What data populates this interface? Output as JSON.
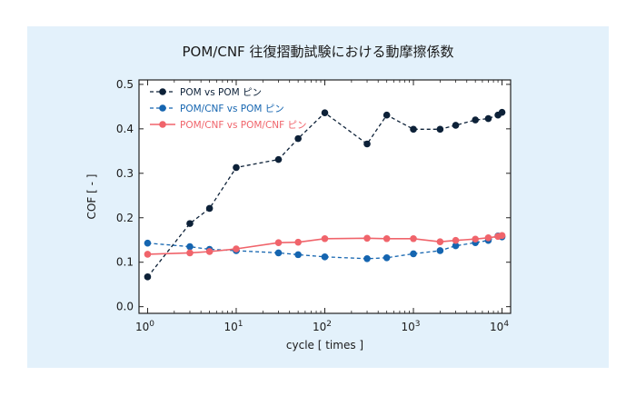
{
  "chart_data": {
    "type": "line",
    "title": "POM/CNF 往復摺動試験における動摩擦係数",
    "xlabel": "cycle [ times ]",
    "ylabel": "COF [ - ]",
    "xscale": "log",
    "xlim": [
      0.8,
      12500
    ],
    "ylim": [
      -0.015,
      0.51
    ],
    "x_ticks": [
      {
        "value": 1,
        "base": "10",
        "exp": "0"
      },
      {
        "value": 10,
        "base": "10",
        "exp": "1"
      },
      {
        "value": 100,
        "base": "10",
        "exp": "2"
      },
      {
        "value": 1000,
        "base": "10",
        "exp": "3"
      },
      {
        "value": 10000,
        "base": "10",
        "exp": "4"
      }
    ],
    "y_ticks": [
      "0.0",
      "0.1",
      "0.2",
      "0.3",
      "0.4",
      "0.5"
    ],
    "legend_position": "top-left",
    "series": [
      {
        "name": "POM vs POM ピン",
        "color": "#0d2138",
        "dashed": true,
        "x": [
          1,
          3,
          5,
          10,
          30,
          50,
          100,
          300,
          500,
          1000,
          2000,
          3000,
          5000,
          7000,
          9000,
          10000
        ],
        "y": [
          0.067,
          0.187,
          0.221,
          0.313,
          0.331,
          0.378,
          0.436,
          0.366,
          0.431,
          0.399,
          0.399,
          0.408,
          0.42,
          0.423,
          0.431,
          0.437
        ]
      },
      {
        "name": "POM/CNF vs POM ピン",
        "color": "#1565b0",
        "dashed": true,
        "x": [
          1,
          3,
          5,
          10,
          30,
          50,
          100,
          300,
          500,
          1000,
          2000,
          3000,
          5000,
          7000,
          9000,
          10000
        ],
        "y": [
          0.143,
          0.135,
          0.129,
          0.126,
          0.121,
          0.117,
          0.112,
          0.108,
          0.11,
          0.119,
          0.126,
          0.137,
          0.144,
          0.149,
          0.159,
          0.157
        ]
      },
      {
        "name": "POM/CNF vs POM/CNF ピン",
        "color": "#f0646b",
        "dashed": false,
        "x": [
          1,
          3,
          5,
          10,
          30,
          50,
          100,
          300,
          500,
          1000,
          2000,
          3000,
          5000,
          7000,
          9000,
          10000
        ],
        "y": [
          0.118,
          0.121,
          0.124,
          0.13,
          0.144,
          0.145,
          0.153,
          0.154,
          0.153,
          0.153,
          0.146,
          0.149,
          0.152,
          0.155,
          0.158,
          0.16
        ]
      }
    ]
  }
}
